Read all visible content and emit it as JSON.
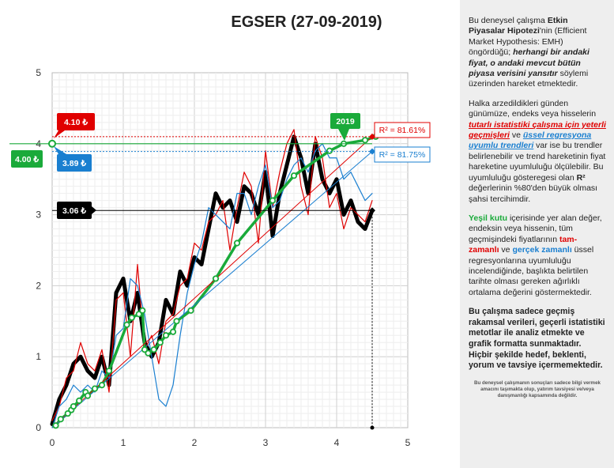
{
  "chart_data": {
    "type": "line",
    "title": "EGSER (27-09-2019)",
    "xlim": [
      0,
      5
    ],
    "ylim": [
      0,
      5
    ],
    "x_ticks": [
      "0",
      "1",
      "2",
      "3",
      "4",
      "5"
    ],
    "y_ticks": [
      "0",
      "1",
      "2",
      "3",
      "4",
      "5"
    ],
    "grid": true,
    "series": [
      {
        "color": "#000000",
        "x": [
          0,
          0.1,
          0.2,
          0.3,
          0.4,
          0.5,
          0.6,
          0.7,
          0.8,
          0.9,
          1.0,
          1.1,
          1.2,
          1.3,
          1.4,
          1.5,
          1.6,
          1.7,
          1.8,
          1.9,
          2.0,
          2.1,
          2.2,
          2.3,
          2.4,
          2.5,
          2.6,
          2.7,
          2.8,
          2.9,
          3.0,
          3.1,
          3.2,
          3.3,
          3.4,
          3.5,
          3.6,
          3.7,
          3.8,
          3.9,
          4.0,
          4.1,
          4.2,
          4.3,
          4.4,
          4.5
        ],
        "y": [
          0.05,
          0.4,
          0.6,
          0.9,
          1.0,
          0.8,
          0.7,
          1.0,
          0.6,
          1.9,
          2.1,
          1.5,
          1.9,
          1.2,
          1.0,
          1.2,
          1.8,
          1.6,
          2.2,
          2.0,
          2.4,
          2.3,
          2.8,
          3.3,
          3.1,
          3.2,
          2.9,
          3.4,
          3.3,
          3.0,
          3.6,
          2.7,
          3.3,
          3.7,
          4.1,
          3.8,
          3.3,
          4.0,
          3.5,
          3.3,
          3.5,
          3.0,
          3.2,
          2.9,
          2.8,
          3.06
        ]
      },
      {
        "color": "#e00000",
        "x": [
          0,
          0.1,
          0.2,
          0.3,
          0.4,
          0.5,
          0.6,
          0.7,
          0.8,
          0.9,
          1.0,
          1.1,
          1.2,
          1.3,
          1.4,
          1.5,
          1.6,
          1.7,
          1.8,
          1.9,
          2.0,
          2.1,
          2.2,
          2.3,
          2.4,
          2.5,
          2.6,
          2.7,
          2.8,
          2.9,
          3.0,
          3.1,
          3.2,
          3.3,
          3.4,
          3.5,
          3.6,
          3.7,
          3.8,
          3.9,
          4.0,
          4.1,
          4.2,
          4.3,
          4.4,
          4.5
        ],
        "y": [
          0.1,
          0.3,
          0.7,
          0.8,
          1.2,
          0.9,
          0.8,
          1.1,
          0.5,
          1.8,
          1.9,
          1.0,
          2.3,
          1.1,
          1.3,
          0.9,
          1.5,
          1.6,
          2.0,
          2.1,
          2.6,
          2.5,
          2.9,
          3.0,
          3.2,
          2.5,
          3.1,
          3.6,
          3.4,
          2.6,
          3.9,
          3.1,
          3.6,
          4.0,
          4.2,
          3.4,
          3.0,
          4.1,
          3.8,
          3.1,
          3.3,
          2.8,
          3.1,
          3.0,
          2.9,
          3.2
        ]
      },
      {
        "color": "#1a7fd0",
        "x": [
          0,
          0.1,
          0.2,
          0.3,
          0.4,
          0.5,
          0.6,
          0.7,
          0.8,
          0.9,
          1.0,
          1.1,
          1.2,
          1.3,
          1.4,
          1.5,
          1.6,
          1.7,
          1.8,
          1.9,
          2.0,
          2.1,
          2.2,
          2.3,
          2.4,
          2.5,
          2.6,
          2.7,
          2.8,
          2.9,
          3.0,
          3.1,
          3.2,
          3.3,
          3.4,
          3.5,
          3.6,
          3.7,
          3.8,
          3.9,
          4.0,
          4.1,
          4.2,
          4.3,
          4.4,
          4.5
        ],
        "y": [
          0.0,
          0.3,
          0.4,
          0.6,
          0.5,
          0.6,
          0.5,
          0.8,
          0.7,
          1.3,
          1.4,
          2.1,
          2.0,
          1.6,
          1.0,
          0.4,
          0.3,
          0.6,
          1.3,
          1.9,
          2.3,
          2.6,
          3.1,
          3.0,
          2.9,
          2.8,
          3.3,
          3.3,
          3.0,
          3.4,
          3.7,
          3.1,
          3.2,
          3.5,
          3.7,
          3.8,
          3.6,
          3.9,
          4.0,
          3.8,
          3.8,
          3.5,
          3.6,
          3.4,
          3.2,
          3.3
        ]
      },
      {
        "color": "#1aaa3a",
        "x": [
          0.05,
          0.12,
          0.22,
          0.27,
          0.3,
          0.38,
          0.47,
          0.5,
          0.6,
          0.7,
          0.8,
          1.05,
          1.12,
          1.22,
          1.27,
          1.3,
          1.35,
          1.43,
          1.52,
          1.6,
          1.7,
          1.75,
          1.95,
          2.3,
          2.6,
          3.1,
          3.4,
          3.9,
          4.1,
          4.4,
          4.55
        ],
        "y": [
          0.03,
          0.12,
          0.2,
          0.25,
          0.3,
          0.38,
          0.5,
          0.45,
          0.55,
          0.6,
          0.8,
          1.45,
          1.55,
          1.6,
          1.65,
          1.1,
          1.05,
          1.1,
          1.2,
          1.3,
          1.35,
          1.5,
          1.65,
          2.1,
          2.6,
          3.2,
          3.55,
          3.9,
          4.0,
          4.05,
          4.1
        ]
      },
      {
        "color": "#e00000",
        "x": [
          0,
          4.5
        ],
        "y": [
          0,
          4.1
        ]
      },
      {
        "color": "#1a7fd0",
        "x": [
          0,
          4.5
        ],
        "y": [
          0,
          3.89
        ]
      }
    ],
    "annotations": [
      {
        "label": "4.10 ₺",
        "color": "#e00000",
        "y": 4.1
      },
      {
        "label": "4.00 ₺",
        "color": "#1aaa3a",
        "y": 4.0
      },
      {
        "label": "3.89 ₺",
        "color": "#1a7fd0",
        "y": 3.89
      },
      {
        "label": "3.06 ₺",
        "color": "#000000",
        "y": 3.06
      },
      {
        "label": "2019",
        "color": "#1aaa3a"
      },
      {
        "label": "R² = 81.61%",
        "color": "#e00000"
      },
      {
        "label": "R² = 81.75%",
        "color": "#1a7fd0"
      }
    ]
  },
  "panel": {
    "p1": {
      "a": "Bu deneysel çalışma ",
      "b": "Etkin Piyasalar Hipotezi",
      "c": "'nin (Efficient Market Hypothesis: EMH) öngördüğü; ",
      "d": "herhangi bir andaki fiyat, o andaki mevcut bütün piyasa verisini yansıtır",
      "e": " söylemi üzerinden hareket etmektedir."
    },
    "p2": {
      "a": "Halka arzedildikleri günden günümüze, endeks veya hisselerin ",
      "b": "tutarlı istatistiki çalışma için yeterli geçmişleri",
      "c": " ve ",
      "d": "üssel regresyona uyumlu trendleri",
      "e": " var ise bu trendler belirlenebilir ve trend hareketinin fiyat hareketine uyumluluğu ölçülebilir. Bu uyumluluğu gösteregesi olan ",
      "f": "R²",
      "g": " değerlerinin %80'den büyük olması şahsi tercihimdir."
    },
    "p3": {
      "a": "Yeşil kutu",
      "b": " içerisinde yer alan değer, endeksin veya hissenin, tüm geçmişindeki fiyatlarının ",
      "c": "tam-zamanlı",
      "d": " ve ",
      "e": "gerçek zamanlı",
      "f": " üssel regresyonlarına uyumluluğu incelendiğinde, başlıkta belirtilen tarihte olması gereken ağırlıklı ortalama değerini göstermektedir."
    },
    "p4": "Bu çalışma sadece geçmiş rakamsal verileri, geçerli istatistiki metotlar ile  analiz etmekte ve grafik formatta sunmaktadır. Hiçbir şekilde hedef, beklenti, yorum ve tavsiye içermemektedir.",
    "p5": "Bu deneysel çalışmanın sonuçları sadece bilgi vermek amacını taşımakta olup, yatırım tavsiyesi ve/veya danışmanlığı kapsamında değildir."
  }
}
